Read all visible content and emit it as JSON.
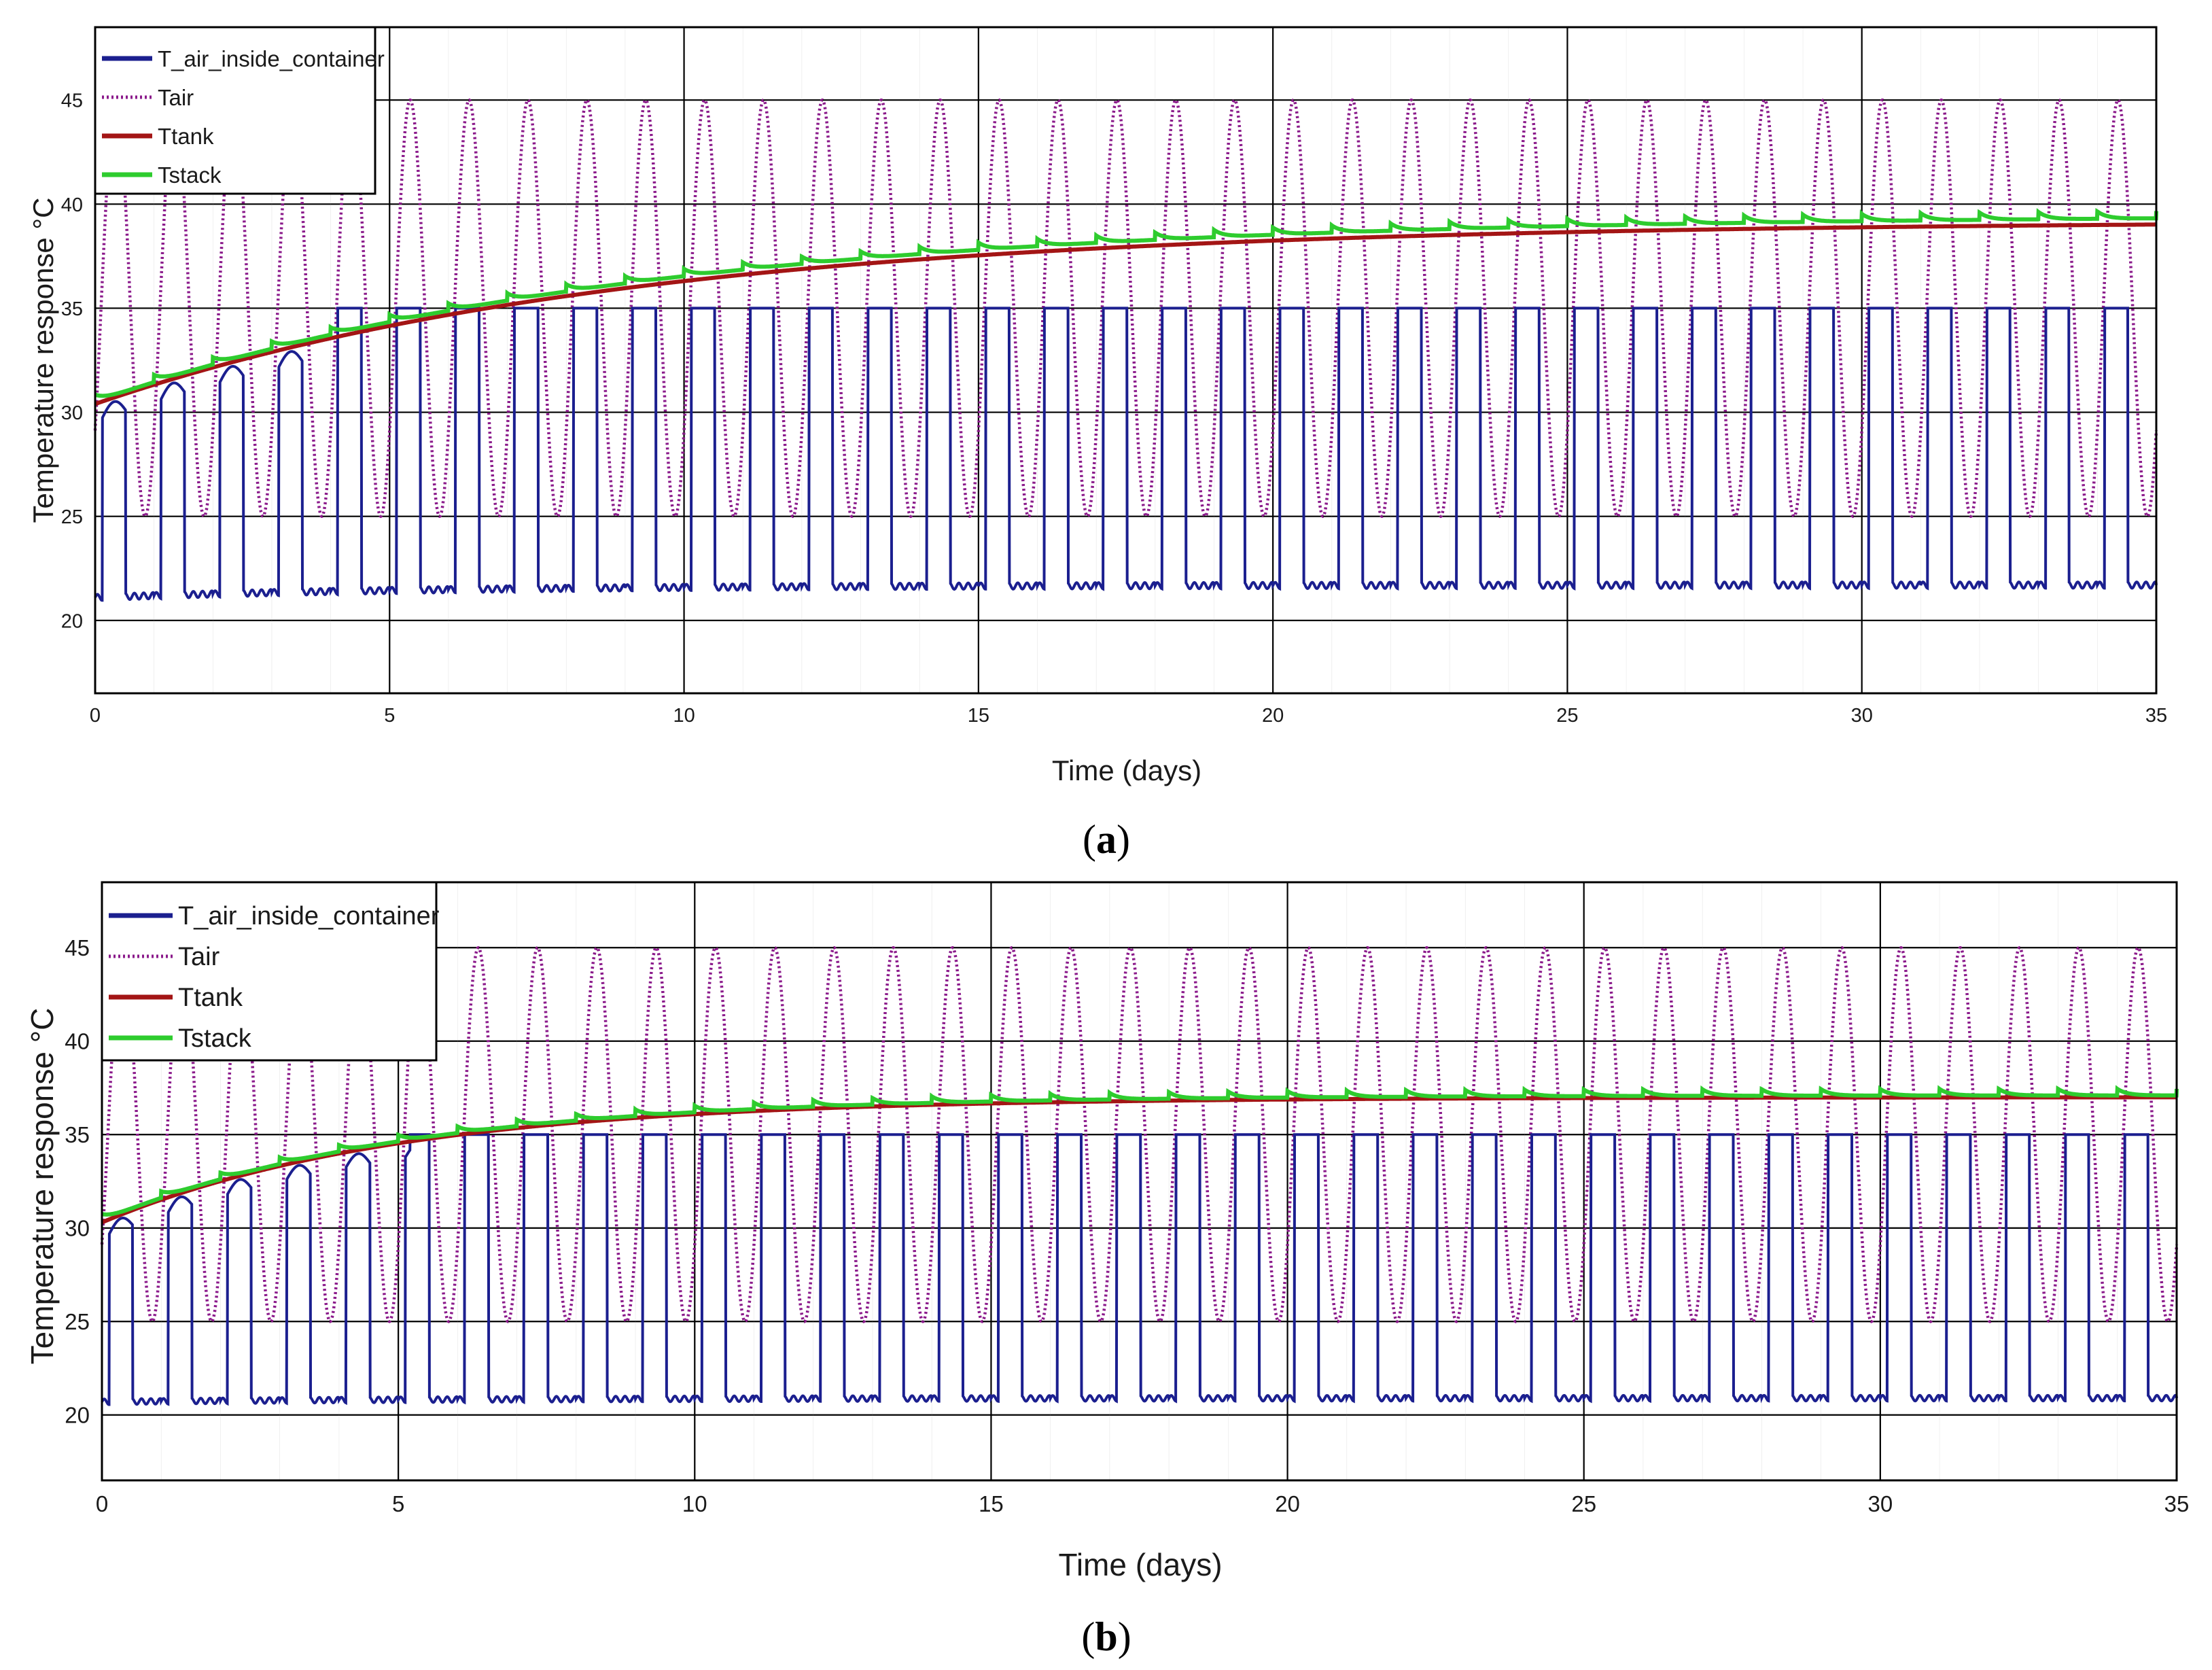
{
  "colors": {
    "T_air_inside_container": "#1b1f8f",
    "Tair": "#8b1a8b",
    "Ttank": "#a31515",
    "Tstack": "#2ecc2e",
    "grid_major": "#000000",
    "grid_minor": "#9a9a9a",
    "axes": "#000000"
  },
  "chart_data": [
    {
      "type": "line",
      "panel": "a",
      "caption_open": "(",
      "caption_letter": "a",
      "caption_close": ")",
      "xlabel": "Time (days)",
      "ylabel": "Temperature response °C",
      "xlim": [
        0,
        35
      ],
      "ylim": [
        16.5,
        48.5
      ],
      "xticks": [
        0,
        5,
        10,
        15,
        20,
        25,
        30,
        35
      ],
      "xtick_labels": [
        "0",
        "5",
        "10",
        "15",
        "20",
        "25",
        "30",
        "35"
      ],
      "yticks": [
        20,
        25,
        30,
        35,
        40,
        45
      ],
      "ytick_labels": [
        "20",
        "25",
        "30",
        "35",
        "40",
        "45"
      ],
      "grid": true,
      "legend_position": "top-left",
      "series": [
        {
          "name": "T_air_inside_container",
          "style": "solid",
          "low": [
            21.1,
            21.7
          ],
          "high_cycles": 35
        },
        {
          "name": "Tair",
          "style": "dotted",
          "min": 25,
          "max": 45,
          "period_days": 1
        },
        {
          "name": "Ttank",
          "style": "solid",
          "start": 30.4,
          "end": 39.2
        },
        {
          "name": "Tstack",
          "style": "solid",
          "start": 30.6,
          "end": 39.6
        }
      ]
    },
    {
      "type": "line",
      "panel": "b",
      "caption_open": "(",
      "caption_letter": "b",
      "caption_close": ")",
      "xlabel": "Time (days)",
      "ylabel": "Temperature response °C",
      "xlim": [
        0,
        35
      ],
      "ylim": [
        16.5,
        48.5
      ],
      "xticks": [
        0,
        5,
        10,
        15,
        20,
        25,
        30,
        35
      ],
      "xtick_labels": [
        "0",
        "5",
        "10",
        "15",
        "20",
        "25",
        "30",
        "35"
      ],
      "yticks": [
        20,
        25,
        30,
        35,
        40,
        45
      ],
      "ytick_labels": [
        "20",
        "25",
        "30",
        "35",
        "40",
        "45"
      ],
      "grid": true,
      "legend_position": "top-left",
      "series": [
        {
          "name": "T_air_inside_container",
          "style": "solid",
          "low": [
            20.7,
            20.9
          ],
          "high_cycles": 35
        },
        {
          "name": "Tair",
          "style": "dotted",
          "min": 25,
          "max": 45,
          "period_days": 1
        },
        {
          "name": "Ttank",
          "style": "solid",
          "start": 30.3,
          "end": 37.0
        },
        {
          "name": "Tstack",
          "style": "solid",
          "start": 30.5,
          "end": 37.2
        }
      ]
    }
  ]
}
